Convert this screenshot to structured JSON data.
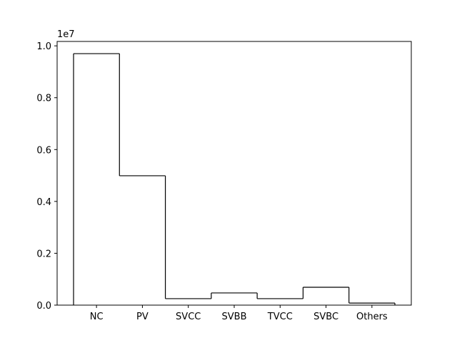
{
  "chart_data": {
    "type": "step",
    "categories": [
      "NC",
      "PV",
      "SVCC",
      "SVBB",
      "TVCC",
      "SVBC",
      "Others"
    ],
    "values": [
      0.97,
      0.499,
      0.025,
      0.047,
      0.025,
      0.069,
      0.008
    ],
    "color": "#000000",
    "y_offset_label": "1e7",
    "ylim": [
      0,
      1.017
    ],
    "yticks": [
      {
        "value": 0,
        "label": "0.0"
      },
      0.2,
      0.4,
      0.6,
      0.8,
      {
        "value": 1,
        "label": "1.0"
      }
    ]
  }
}
